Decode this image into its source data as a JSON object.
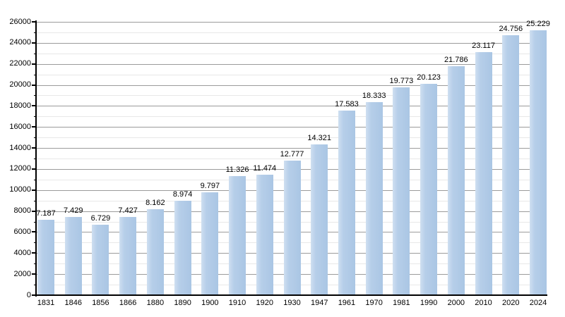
{
  "chart_data": {
    "type": "bar",
    "title": "",
    "xlabel": "",
    "ylabel": "",
    "categories": [
      "1831",
      "1846",
      "1856",
      "1866",
      "1880",
      "1890",
      "1900",
      "1910",
      "1920",
      "1930",
      "1947",
      "1961",
      "1970",
      "1981",
      "1990",
      "2000",
      "2010",
      "2020",
      "2024"
    ],
    "values": [
      7187,
      7429,
      6729,
      7427,
      8162,
      8974,
      9797,
      11326,
      11474,
      12777,
      14321,
      17583,
      18333,
      19773,
      20123,
      21786,
      23117,
      24756,
      25229
    ],
    "value_labels": [
      "7.187",
      "7.429",
      "6.729",
      "7.427",
      "8.162",
      "8.974",
      "9.797",
      "11.326",
      "11.474",
      "12.777",
      "14.321",
      "17.583",
      "18.333",
      "19.773",
      "20.123",
      "21.786",
      "23.117",
      "24.756",
      "25.229"
    ],
    "ylim": [
      0,
      26000
    ],
    "y_major_step": 2000,
    "y_minor_step": 1000,
    "grid": true,
    "legend": false,
    "colors": {
      "background": "#ffffff",
      "bar_main": "#aac6e4",
      "bar_mid": "#b6cee9",
      "bar_light": "#cfdff1",
      "major_grid": "#9b9b9b",
      "minor_grid": "#e8e8e8",
      "axis": "#000000",
      "text": "#000000"
    }
  }
}
